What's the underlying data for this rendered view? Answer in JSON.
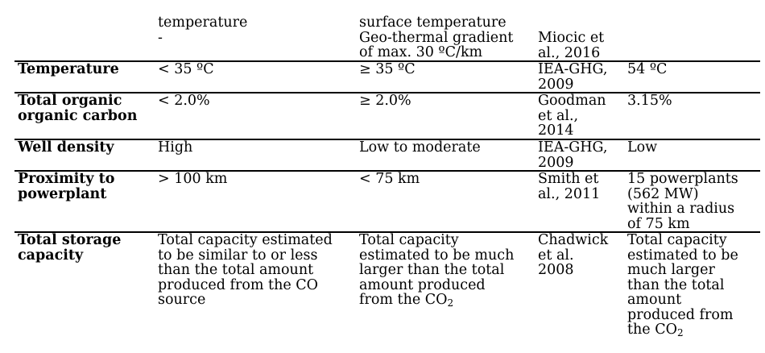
{
  "head": {
    "c1": "temperature\n-",
    "c2": "surface temperature\nGeo-thermal gradient\nof max. 30 ºC/km",
    "c3": "Miocic et\nal., 2016"
  },
  "rows": [
    {
      "label": "Temperature",
      "c1": "< 35 ºC",
      "c2": "≥ 35 ºC",
      "ref": "IEA-GHG,\n2009",
      "val": "54 ºC"
    },
    {
      "label": "Total organic\norganic carbon",
      "c1": "< 2.0%",
      "c2": "≥ 2.0%",
      "ref": "Goodman\net al.,\n2014",
      "val": "3.15%"
    },
    {
      "label": "Well density",
      "c1": "High",
      "c2": "Low to moderate",
      "ref": "IEA-GHG,\n2009",
      "val": "Low"
    },
    {
      "label": "Proximity to\npowerplant",
      "c1": "> 100 km",
      "c2": "< 75 km",
      "ref": "Smith et\nal., 2011",
      "val": "15 powerplants\n(562 MW)\nwithin a radius\nof 75 km"
    },
    {
      "label": "Total storage\ncapacity",
      "c1": "Total capacity estimated\nto be similar to or less\nthan the total amount\nproduced from the CO\nsource",
      "c2_text": "Total capacity\nestimated to be much\nlarger than the total\namount produced\nfrom the CO",
      "c2_sub": "2",
      "ref": "Chadwick\net al.\n2008",
      "val_text": "Total capacity\nestimated to be\nmuch larger\nthan the total\namount\nproduced from\nthe CO",
      "val_sub": "2"
    }
  ]
}
